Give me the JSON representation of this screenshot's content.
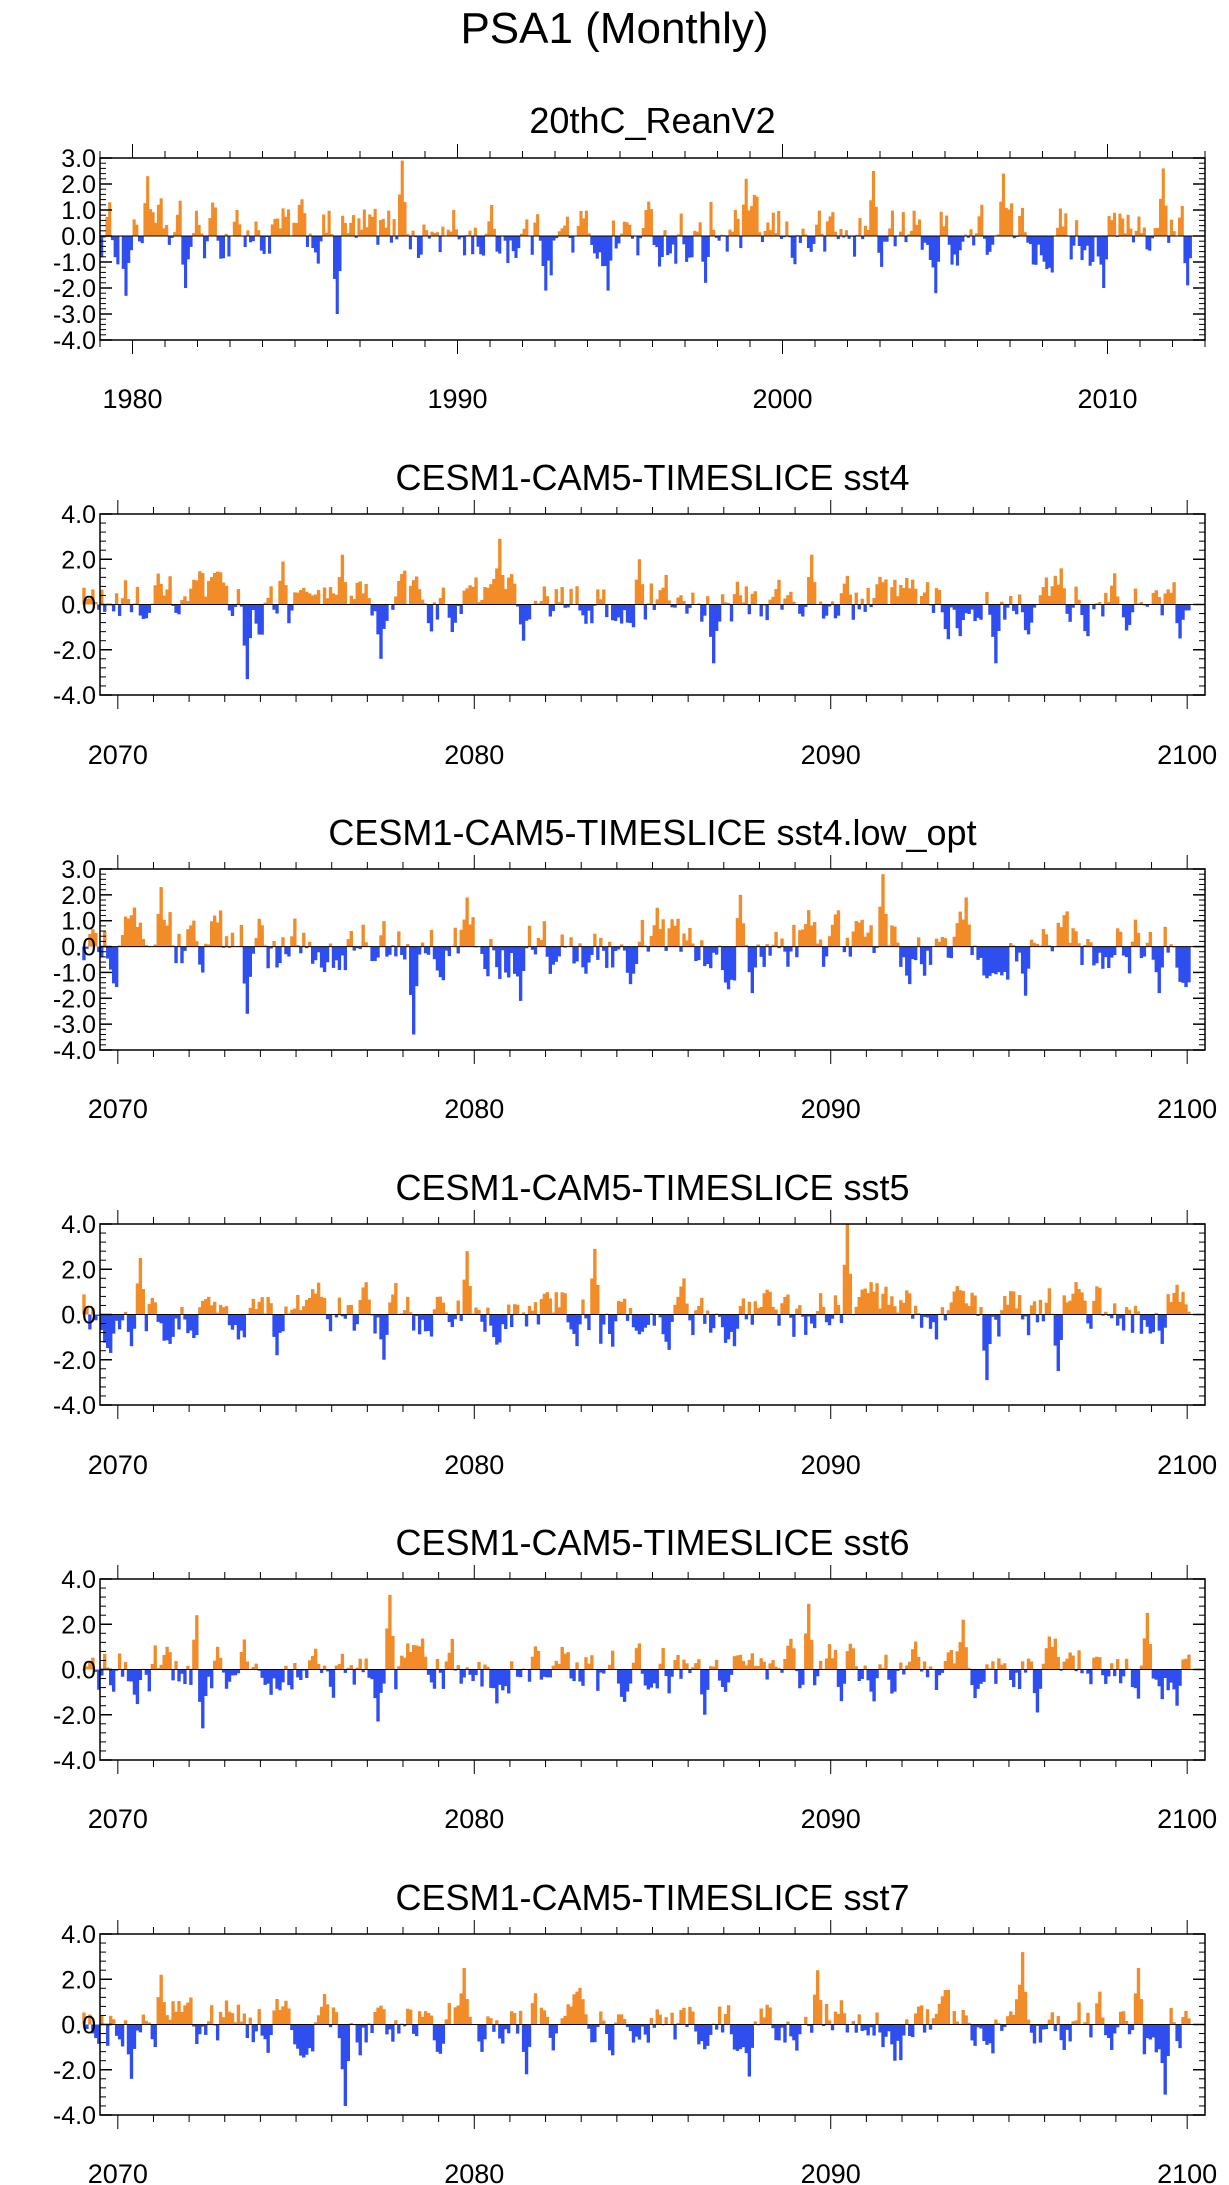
{
  "title": "PSA1 (Monthly)",
  "colors": {
    "positive": "#f28c28",
    "negative": "#2f4ef0",
    "axis": "#000000"
  },
  "chart_data": [
    {
      "type": "area",
      "title": "20thC_ReanV2",
      "xlabel": "",
      "ylabel": "",
      "xlim": [
        1979,
        2013
      ],
      "ylim": [
        -4.0,
        3.0
      ],
      "yticks": [
        3.0,
        2.0,
        1.0,
        0.0,
        -1.0,
        -2.0,
        -3.0,
        -4.0
      ],
      "ytick_labels": [
        "3.0",
        "2.0",
        "1.0",
        "0.0",
        "-1.0",
        "-2.0",
        "-3.0",
        "-4.0"
      ],
      "xticks": [
        1980,
        1990,
        2000,
        2010
      ],
      "xtick_labels": [
        "1980",
        "1990",
        "2000",
        "2010"
      ],
      "fill_above_zero": "positive",
      "fill_below_zero": "negative",
      "annotations": [
        {
          "x": 1980.5,
          "y": 2.3
        },
        {
          "x": 1979.8,
          "y": -2.3
        },
        {
          "x": 1981.6,
          "y": -2.0
        },
        {
          "x": 1983.2,
          "y": 1.0
        },
        {
          "x": 1986.3,
          "y": -3.0
        },
        {
          "x": 1988.3,
          "y": 2.9
        },
        {
          "x": 1992.7,
          "y": -2.1
        },
        {
          "x": 1994.6,
          "y": -2.1
        },
        {
          "x": 1997.6,
          "y": -1.8
        },
        {
          "x": 1998.9,
          "y": 2.2
        },
        {
          "x": 2002.8,
          "y": 2.5
        },
        {
          "x": 2004.7,
          "y": -2.2
        },
        {
          "x": 2006.8,
          "y": 2.4
        },
        {
          "x": 2009.9,
          "y": -2.0
        },
        {
          "x": 2011.7,
          "y": 2.6
        },
        {
          "x": 2012.5,
          "y": -1.9
        }
      ]
    },
    {
      "type": "area",
      "title": "CESM1-CAM5-TIMESLICE sst4",
      "xlabel": "",
      "ylabel": "",
      "xlim": [
        2069.5,
        2100.5
      ],
      "ylim": [
        -4.0,
        4.0
      ],
      "yticks": [
        4.0,
        2.0,
        0.0,
        -2.0,
        -4.0
      ],
      "ytick_labels": [
        "4.0",
        "2.0",
        "0.0",
        "-2.0",
        "-4.0"
      ],
      "xticks": [
        2070,
        2080,
        2090,
        2100
      ],
      "xtick_labels": [
        "2070",
        "2080",
        "2090",
        "2100"
      ],
      "fill_above_zero": "positive",
      "fill_below_zero": "negative",
      "annotations": [
        {
          "x": 2073.6,
          "y": -3.3
        },
        {
          "x": 2074.6,
          "y": 1.9
        },
        {
          "x": 2076.3,
          "y": 2.2
        },
        {
          "x": 2077.4,
          "y": -2.4
        },
        {
          "x": 2080.7,
          "y": 2.9
        },
        {
          "x": 2081.4,
          "y": -1.6
        },
        {
          "x": 2084.6,
          "y": 2.0
        },
        {
          "x": 2086.7,
          "y": -2.6
        },
        {
          "x": 2089.5,
          "y": 2.2
        },
        {
          "x": 2094.6,
          "y": -2.6
        },
        {
          "x": 2096.5,
          "y": 1.6
        },
        {
          "x": 2099.8,
          "y": -1.5
        }
      ]
    },
    {
      "type": "area",
      "title": "CESM1-CAM5-TIMESLICE sst4.low_opt",
      "xlabel": "",
      "ylabel": "",
      "xlim": [
        2069.5,
        2100.5
      ],
      "ylim": [
        -4.0,
        3.0
      ],
      "yticks": [
        3.0,
        2.0,
        1.0,
        0.0,
        -1.0,
        -2.0,
        -3.0,
        -4.0
      ],
      "ytick_labels": [
        "3.0",
        "2.0",
        "1.0",
        "0.0",
        "-1.0",
        "-2.0",
        "-3.0",
        "-4.0"
      ],
      "xticks": [
        2070,
        2080,
        2090,
        2100
      ],
      "xtick_labels": [
        "2070",
        "2080",
        "2090",
        "2100"
      ],
      "fill_above_zero": "positive",
      "fill_below_zero": "negative",
      "annotations": [
        {
          "x": 2071.2,
          "y": 2.3
        },
        {
          "x": 2073.6,
          "y": -2.6
        },
        {
          "x": 2078.3,
          "y": -3.4
        },
        {
          "x": 2079.8,
          "y": 1.9
        },
        {
          "x": 2081.3,
          "y": -2.1
        },
        {
          "x": 2085.1,
          "y": 1.5
        },
        {
          "x": 2087.5,
          "y": 2.0
        },
        {
          "x": 2087.8,
          "y": -1.8
        },
        {
          "x": 2091.5,
          "y": 2.8
        },
        {
          "x": 2093.8,
          "y": 1.9
        },
        {
          "x": 2095.5,
          "y": -1.9
        },
        {
          "x": 2099.2,
          "y": -1.8
        }
      ]
    },
    {
      "type": "area",
      "title": "CESM1-CAM5-TIMESLICE sst5",
      "xlabel": "",
      "ylabel": "",
      "xlim": [
        2069.5,
        2100.5
      ],
      "ylim": [
        -4.0,
        4.0
      ],
      "yticks": [
        4.0,
        2.0,
        0.0,
        -2.0,
        -4.0
      ],
      "ytick_labels": [
        "4.0",
        "2.0",
        "0.0",
        "-2.0",
        "-4.0"
      ],
      "xticks": [
        2070,
        2080,
        2090,
        2100
      ],
      "xtick_labels": [
        "2070",
        "2080",
        "2090",
        "2100"
      ],
      "fill_above_zero": "positive",
      "fill_below_zero": "negative",
      "annotations": [
        {
          "x": 2070.4,
          "y": -1.4
        },
        {
          "x": 2070.6,
          "y": 2.5
        },
        {
          "x": 2074.5,
          "y": -1.8
        },
        {
          "x": 2077.5,
          "y": -2.0
        },
        {
          "x": 2079.8,
          "y": 2.8
        },
        {
          "x": 2083.4,
          "y": 2.9
        },
        {
          "x": 2087.3,
          "y": -1.4
        },
        {
          "x": 2090.5,
          "y": 4.0
        },
        {
          "x": 2094.4,
          "y": -2.9
        },
        {
          "x": 2096.4,
          "y": -2.5
        },
        {
          "x": 2099.3,
          "y": -1.3
        },
        {
          "x": 2099.9,
          "y": 1.0
        }
      ]
    },
    {
      "type": "area",
      "title": "CESM1-CAM5-TIMESLICE sst6",
      "xlabel": "",
      "ylabel": "",
      "xlim": [
        2069.5,
        2100.5
      ],
      "ylim": [
        -4.0,
        4.0
      ],
      "yticks": [
        4.0,
        2.0,
        0.0,
        -2.0,
        -4.0
      ],
      "ytick_labels": [
        "4.0",
        "2.0",
        "0.0",
        "-2.0",
        "-4.0"
      ],
      "xticks": [
        2070,
        2080,
        2090,
        2100
      ],
      "xtick_labels": [
        "2070",
        "2080",
        "2090",
        "2100"
      ],
      "fill_above_zero": "positive",
      "fill_below_zero": "negative",
      "annotations": [
        {
          "x": 2072.2,
          "y": 2.4
        },
        {
          "x": 2072.4,
          "y": -2.6
        },
        {
          "x": 2077.3,
          "y": -2.3
        },
        {
          "x": 2077.6,
          "y": 3.3
        },
        {
          "x": 2080.6,
          "y": -1.5
        },
        {
          "x": 2086.5,
          "y": -2.0
        },
        {
          "x": 2089.4,
          "y": 2.9
        },
        {
          "x": 2090.3,
          "y": -1.4
        },
        {
          "x": 2093.7,
          "y": 2.2
        },
        {
          "x": 2095.8,
          "y": -1.9
        },
        {
          "x": 2098.9,
          "y": 2.5
        },
        {
          "x": 2099.7,
          "y": -1.6
        }
      ]
    },
    {
      "type": "area",
      "title": "CESM1-CAM5-TIMESLICE sst7",
      "xlabel": "",
      "ylabel": "",
      "xlim": [
        2069.5,
        2100.5
      ],
      "ylim": [
        -4.0,
        4.0
      ],
      "yticks": [
        4.0,
        2.0,
        0.0,
        -2.0,
        -4.0
      ],
      "ytick_labels": [
        "4.0",
        "2.0",
        "0.0",
        "-2.0",
        "-4.0"
      ],
      "xticks": [
        2070,
        2080,
        2090,
        2100
      ],
      "xtick_labels": [
        "2070",
        "2080",
        "2090",
        "2100"
      ],
      "fill_above_zero": "positive",
      "fill_below_zero": "negative",
      "annotations": [
        {
          "x": 2070.4,
          "y": -2.4
        },
        {
          "x": 2071.2,
          "y": 2.2
        },
        {
          "x": 2076.4,
          "y": -3.6
        },
        {
          "x": 2079.7,
          "y": 2.5
        },
        {
          "x": 2081.5,
          "y": -2.2
        },
        {
          "x": 2087.7,
          "y": -2.3
        },
        {
          "x": 2089.6,
          "y": 2.4
        },
        {
          "x": 2091.8,
          "y": -1.6
        },
        {
          "x": 2095.4,
          "y": 3.2
        },
        {
          "x": 2098.6,
          "y": 2.5
        },
        {
          "x": 2099.4,
          "y": -3.1
        },
        {
          "x": 2100.0,
          "y": 0.6
        }
      ]
    }
  ]
}
